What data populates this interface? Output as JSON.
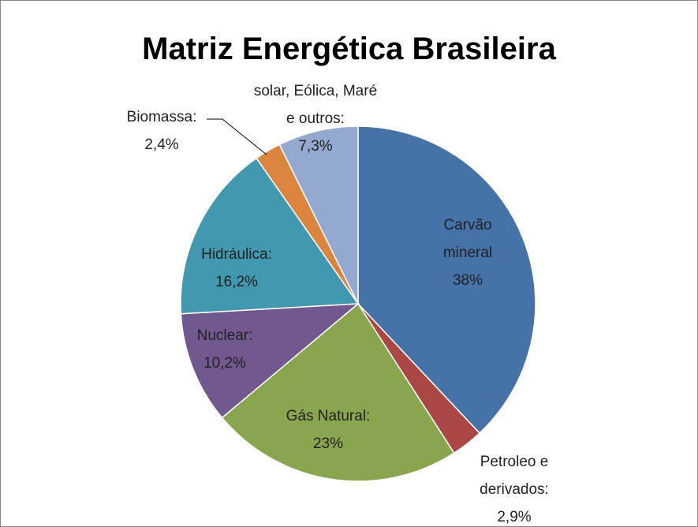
{
  "chart_data": {
    "type": "pie",
    "title": "Matriz Energética Brasileira",
    "categories": [
      "Carvão mineral",
      "Petroleo e derivados:",
      "Gás Natural:",
      "Nuclear:",
      "Hidráulica:",
      "Biomassa:",
      "solar, Eólica, Maré e outros:"
    ],
    "values": [
      38,
      2.9,
      23,
      10.2,
      16.2,
      2.4,
      7.3
    ],
    "value_labels": [
      "38%",
      "2,9%",
      "23%",
      "10,2%",
      "16,2%",
      "2,4%",
      "7,3%"
    ],
    "colors": [
      "#4572A7",
      "#AA4643",
      "#89A54E",
      "#71588F",
      "#4198AF",
      "#DB843D",
      "#93A9CF"
    ]
  }
}
